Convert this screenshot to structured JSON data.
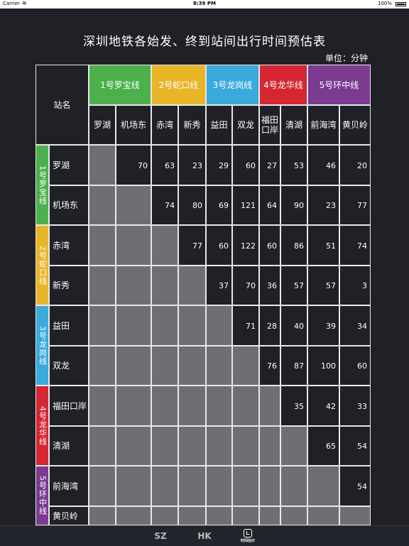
{
  "status": {
    "carrier": "Carrier",
    "time": "8:39 PM",
    "battery": "100%"
  },
  "title": "深圳地铁各始发、终到站间出行时间预估表",
  "unit": "单位：分钟",
  "corner": "站名",
  "lines": [
    {
      "name": "1号罗宝线",
      "vertical": "1号罗宝线",
      "color": "#4cb04c"
    },
    {
      "name": "2号蛇口线",
      "vertical": "2号蛇口线",
      "color": "#e9b528"
    },
    {
      "name": "3号龙岗线",
      "vertical": "3号龙岗线",
      "color": "#3aa9dc"
    },
    {
      "name": "4号龙华线",
      "vertical": "4号龙华线",
      "color": "#d52631"
    },
    {
      "name": "5号环中线",
      "vertical": "5号环中线",
      "color": "#7a3b91"
    }
  ],
  "stations": [
    "罗湖",
    "机场东",
    "赤湾",
    "新秀",
    "益田",
    "双龙",
    "福田口岸",
    "清湖",
    "前海湾",
    "黄贝岭"
  ],
  "col_labels": [
    "罗湖",
    "机场东",
    "赤湾",
    "新秀",
    "益田",
    "双龙",
    "福田\n口岸",
    "清湖",
    "前海湾",
    "黄贝岭"
  ],
  "times": [
    [
      null,
      "70",
      "63",
      "23",
      "29",
      "60",
      "27",
      "53",
      "46",
      "20"
    ],
    [
      null,
      null,
      "74",
      "80",
      "69",
      "121",
      "64",
      "90",
      "23",
      "77"
    ],
    [
      null,
      null,
      null,
      "77",
      "60",
      "122",
      "60",
      "86",
      "51",
      "74"
    ],
    [
      null,
      null,
      null,
      null,
      "37",
      "70",
      "36",
      "57",
      "57",
      "3"
    ],
    [
      null,
      null,
      null,
      null,
      null,
      "71",
      "28",
      "40",
      "39",
      "34"
    ],
    [
      null,
      null,
      null,
      null,
      null,
      null,
      "76",
      "87",
      "100",
      "60"
    ],
    [
      null,
      null,
      null,
      null,
      null,
      null,
      null,
      "35",
      "42",
      "33"
    ],
    [
      null,
      null,
      null,
      null,
      null,
      null,
      null,
      null,
      "65",
      "54"
    ],
    [
      null,
      null,
      null,
      null,
      null,
      null,
      null,
      null,
      null,
      "54"
    ],
    [
      null,
      null,
      null,
      null,
      null,
      null,
      null,
      null,
      null,
      null
    ]
  ],
  "tabs": [
    {
      "label": "SZ"
    },
    {
      "label": "HK"
    },
    {
      "label": "时间估计"
    }
  ]
}
